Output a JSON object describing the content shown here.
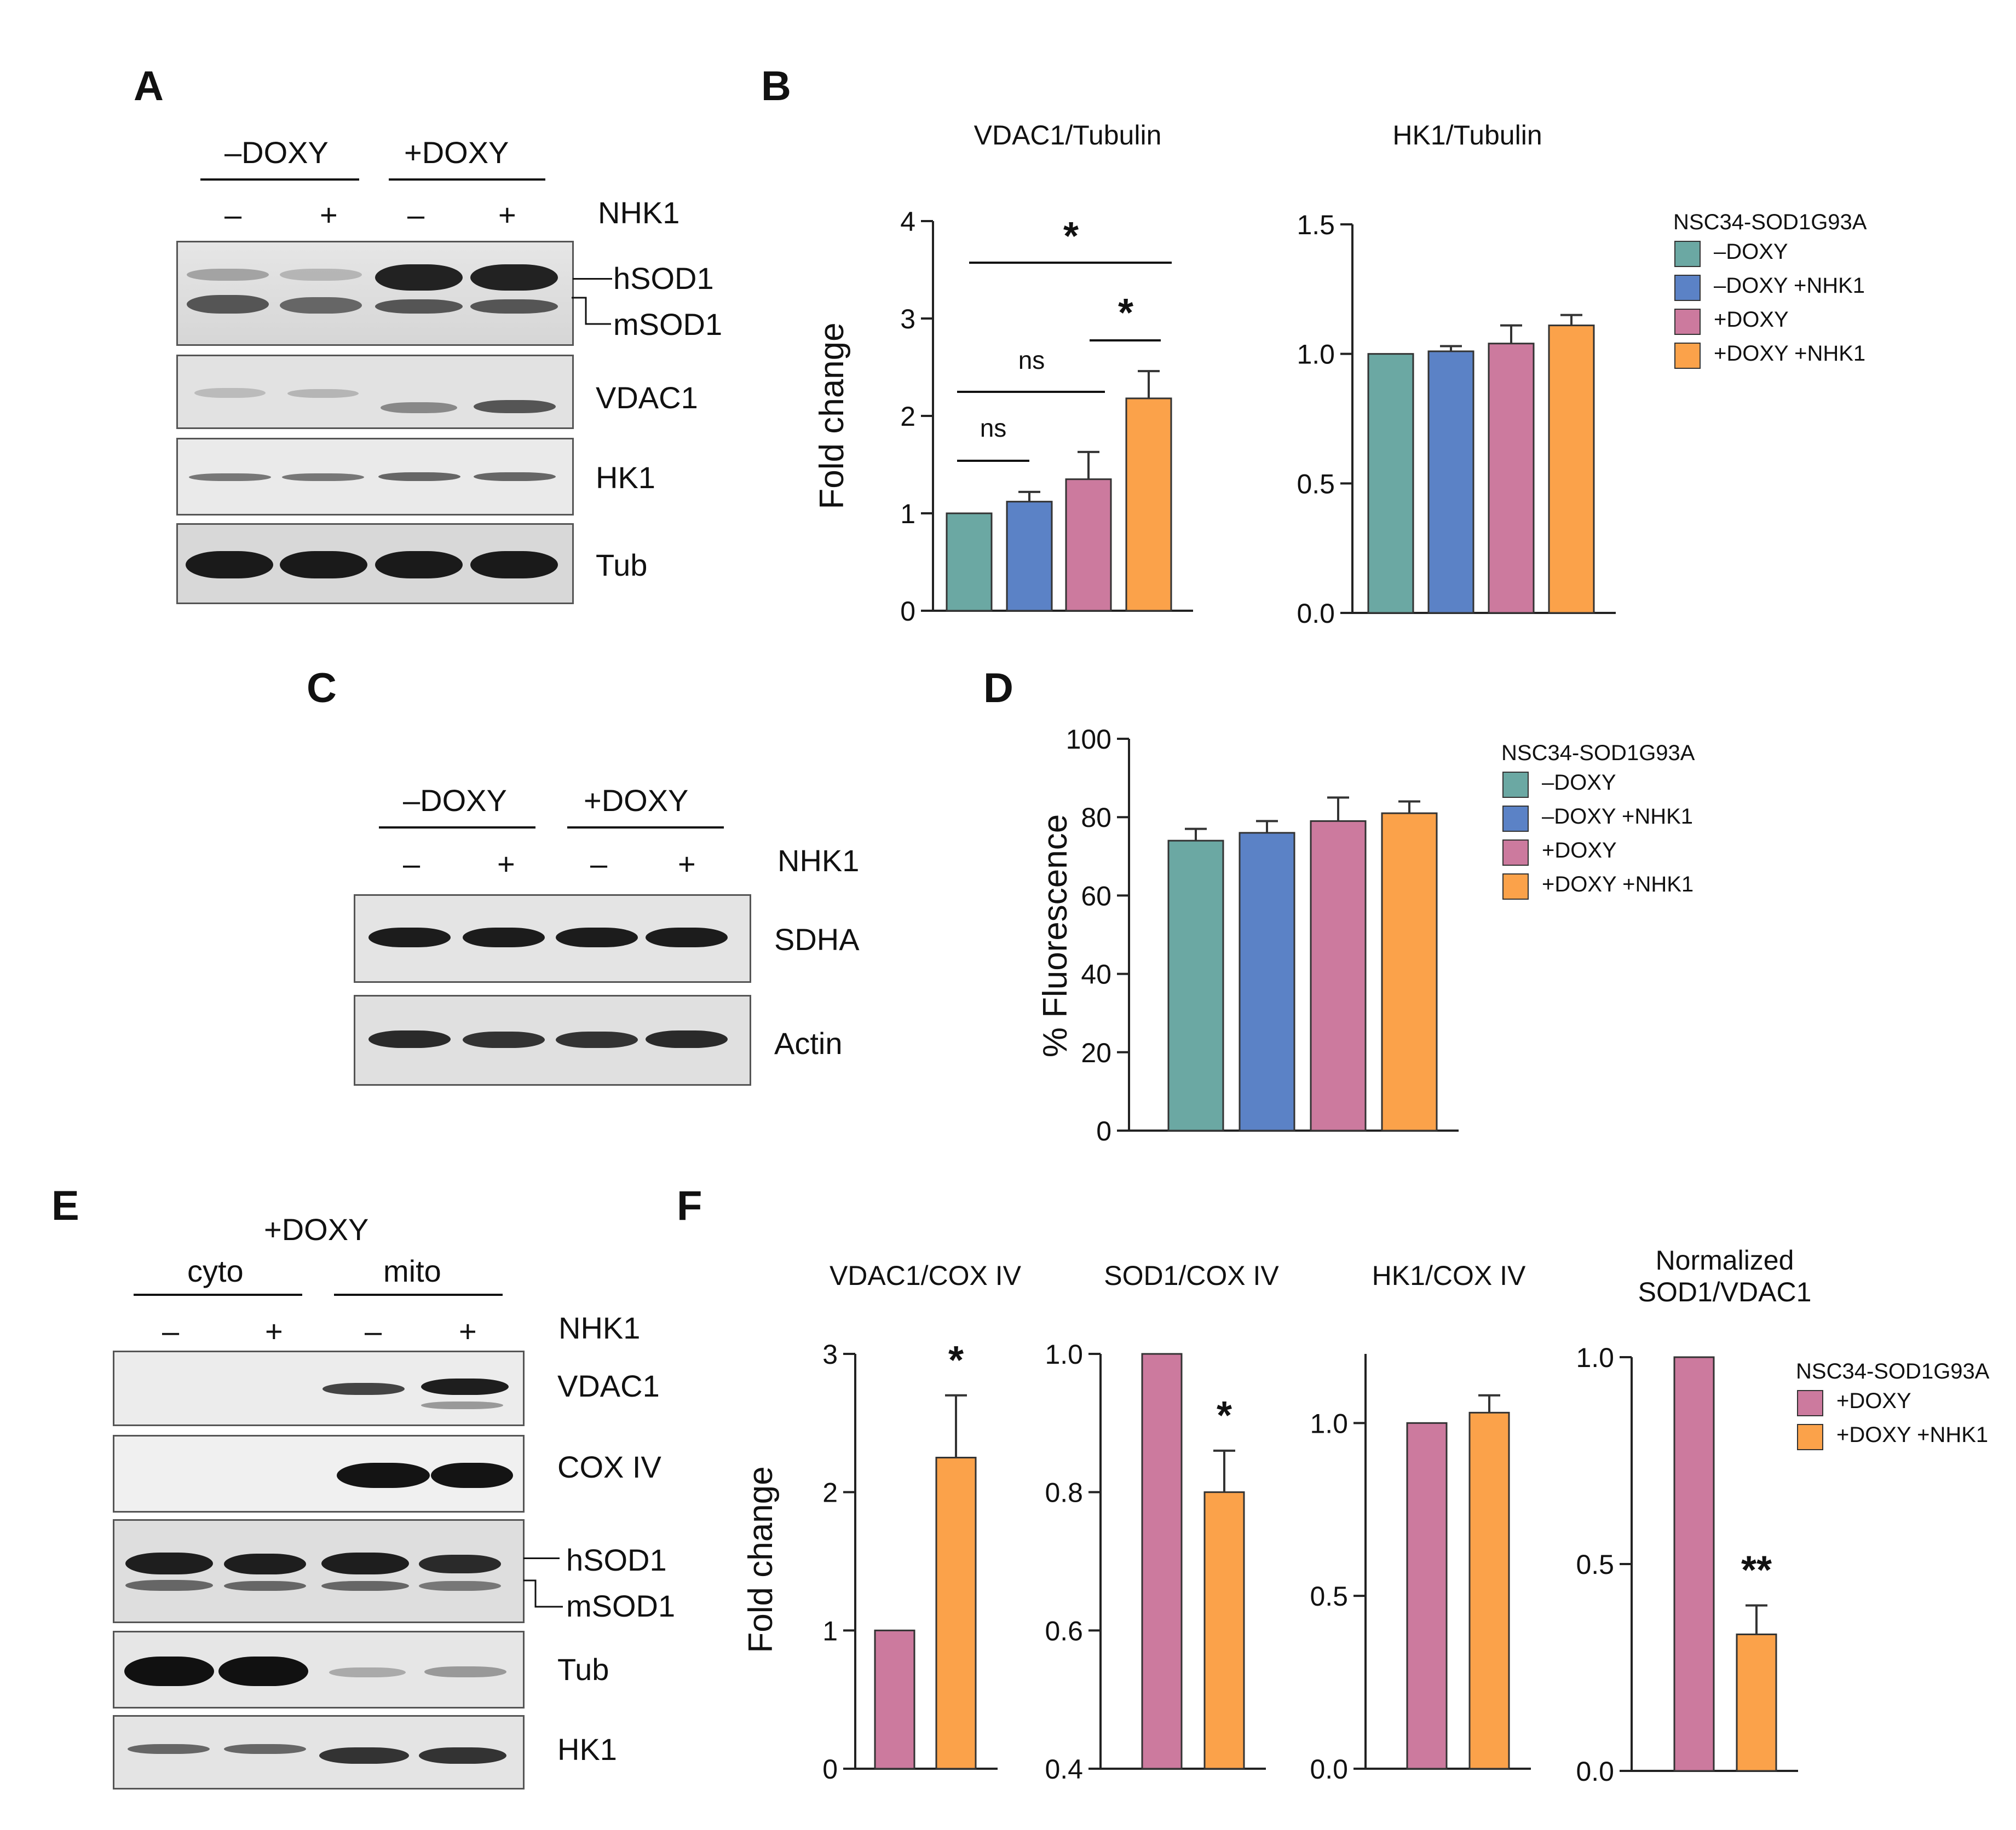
{
  "panels": {
    "A": "A",
    "B": "B",
    "C": "C",
    "D": "D",
    "E": "E",
    "F": "F"
  },
  "blot_a": {
    "groups": [
      "–DOXY",
      "+DOXY"
    ],
    "nhk1_label": "NHK1",
    "signs": [
      "–",
      "+",
      "–",
      "+"
    ],
    "rows": [
      "hSOD1",
      "mSOD1",
      "VDAC1",
      "HK1",
      "Tub"
    ]
  },
  "blot_c": {
    "groups": [
      "–DOXY",
      "+DOXY"
    ],
    "nhk1_label": "NHK1",
    "signs": [
      "–",
      "+",
      "–",
      "+"
    ],
    "rows": [
      "SDHA",
      "Actin"
    ]
  },
  "blot_e": {
    "header": "+DOXY",
    "groups": [
      "cyto",
      "mito"
    ],
    "nhk1_label": "NHK1",
    "signs": [
      "–",
      "+",
      "–",
      "+"
    ],
    "rows": [
      "VDAC1",
      "COX IV",
      "hSOD1",
      "mSOD1",
      "Tub",
      "HK1"
    ]
  },
  "legend_b": {
    "title": "NSC34-SOD1G93A",
    "items": [
      "–DOXY",
      "–DOXY +NHK1",
      "+DOXY",
      "+DOXY +NHK1"
    ]
  },
  "legend_d": {
    "title": "NSC34-SOD1G93A",
    "items": [
      "–DOXY",
      "–DOXY +NHK1",
      "+DOXY",
      "+DOXY +NHK1"
    ]
  },
  "legend_f": {
    "title": "NSC34-SOD1G93A",
    "items": [
      "+DOXY",
      "+DOXY +NHK1"
    ]
  },
  "colors": {
    "teal": "#6ba8a3",
    "blue": "#5b82c6",
    "pink": "#cc7a9e",
    "orange": "#fba24a"
  },
  "chart_data": [
    {
      "id": "B1",
      "type": "bar",
      "title": "VDAC1/Tubulin",
      "ylabel": "Fold change",
      "ylim": [
        0,
        4
      ],
      "yticks": [
        "0",
        "1",
        "2",
        "3",
        "4"
      ],
      "values": [
        1.0,
        1.12,
        1.35,
        2.18
      ],
      "errors": [
        0,
        0.1,
        0.28,
        0.28
      ],
      "colors": [
        "teal",
        "blue",
        "pink",
        "orange"
      ],
      "annotations": [
        "ns",
        "ns",
        "*",
        "*"
      ]
    },
    {
      "id": "B2",
      "type": "bar",
      "title": "HK1/Tubulin",
      "ylabel": "",
      "ylim": [
        0,
        1.5
      ],
      "yticks": [
        "0.0",
        "0.5",
        "1.0",
        "1.5"
      ],
      "values": [
        1.0,
        1.01,
        1.04,
        1.11
      ],
      "errors": [
        0,
        0.02,
        0.07,
        0.04
      ],
      "colors": [
        "teal",
        "blue",
        "pink",
        "orange"
      ],
      "annotations": []
    },
    {
      "id": "D",
      "type": "bar",
      "title": "",
      "ylabel": "% Fluorescence",
      "ylim": [
        0,
        100
      ],
      "yticks": [
        "0",
        "20",
        "40",
        "60",
        "80",
        "100"
      ],
      "values": [
        74,
        76,
        79,
        81
      ],
      "errors": [
        3,
        3,
        6,
        3
      ],
      "colors": [
        "teal",
        "blue",
        "pink",
        "orange"
      ],
      "annotations": []
    },
    {
      "id": "F1",
      "type": "bar",
      "title": "VDAC1/COX IV",
      "ylabel": "Fold change",
      "ylim": [
        0,
        3
      ],
      "yticks": [
        "0",
        "1",
        "2",
        "3"
      ],
      "values": [
        1.0,
        2.25
      ],
      "errors": [
        0,
        0.45
      ],
      "colors": [
        "pink",
        "orange"
      ],
      "annotations": [
        "*"
      ]
    },
    {
      "id": "F2",
      "type": "bar",
      "title": "SOD1/COX IV",
      "ylabel": "",
      "ylim": [
        0.4,
        1.0
      ],
      "yticks": [
        "0.4",
        "0.6",
        "0.8",
        "1.0"
      ],
      "values": [
        1.0,
        0.8
      ],
      "errors": [
        0,
        0.06
      ],
      "colors": [
        "pink",
        "orange"
      ],
      "annotations": [
        "*"
      ]
    },
    {
      "id": "F3",
      "type": "bar",
      "title": "HK1/COX IV",
      "ylabel": "",
      "ylim": [
        0,
        1.2
      ],
      "yticks": [
        "0.0",
        "0.5",
        "1.0"
      ],
      "values": [
        1.0,
        1.03
      ],
      "errors": [
        0,
        0.05
      ],
      "colors": [
        "pink",
        "orange"
      ],
      "annotations": []
    },
    {
      "id": "F4",
      "type": "bar",
      "title": "Normalized\nSOD1/VDAC1",
      "ylabel": "",
      "ylim": [
        0,
        1.0
      ],
      "yticks": [
        "0.0",
        "0.5",
        "1.0"
      ],
      "values": [
        1.0,
        0.33
      ],
      "errors": [
        0,
        0.07
      ],
      "colors": [
        "pink",
        "orange"
      ],
      "annotations": [
        "**"
      ]
    }
  ]
}
